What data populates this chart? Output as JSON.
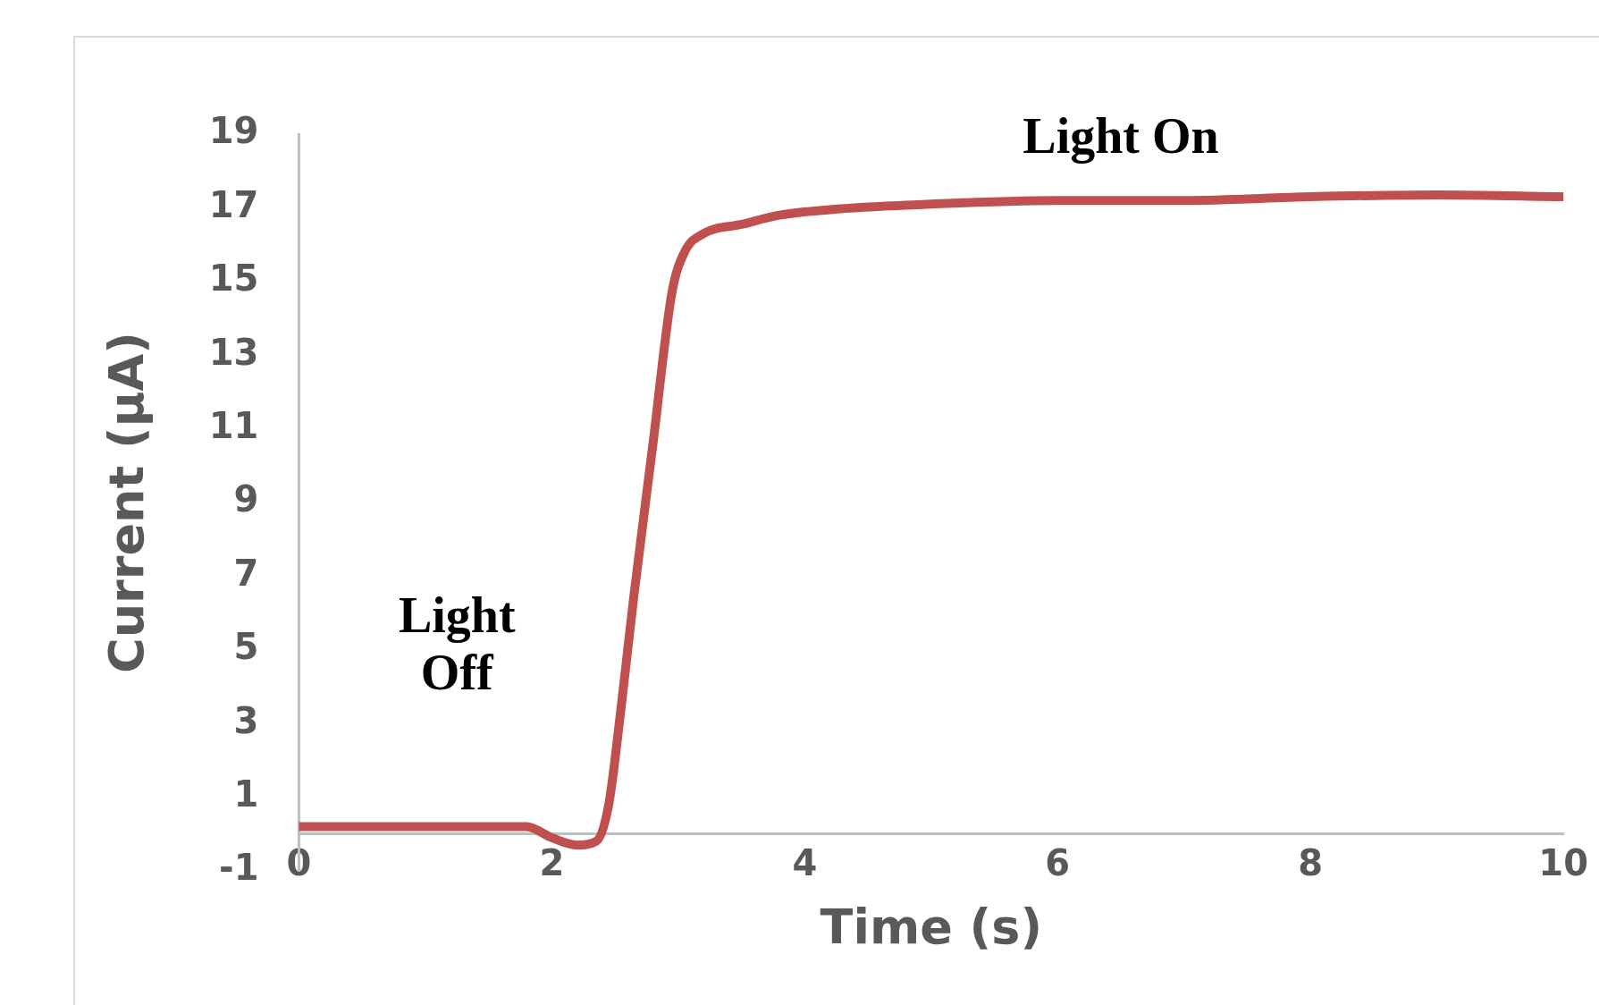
{
  "chart_data": {
    "type": "line",
    "xlabel": "Time (s)",
    "ylabel": "Current (μA)",
    "x": [
      0,
      0.5,
      1,
      1.5,
      1.8,
      2,
      2.2,
      2.35,
      2.45,
      2.55,
      2.65,
      2.8,
      2.95,
      3.05,
      3.2,
      3.5,
      3.8,
      4.2,
      5,
      6,
      7,
      8,
      9,
      10
    ],
    "series": [
      {
        "color": "#c0504d",
        "values": [
          0.2,
          0.2,
          0.2,
          0.2,
          0.2,
          -0.1,
          -0.3,
          -0.2,
          0.8,
          3.5,
          6.5,
          10.6,
          14.7,
          15.8,
          16.3,
          16.55,
          16.8,
          16.95,
          17.1,
          17.2,
          17.2,
          17.3,
          17.35,
          17.3
        ]
      }
    ],
    "xlim": [
      0,
      10
    ],
    "xticks": [
      0,
      2,
      4,
      6,
      8,
      10
    ],
    "ylim": [
      -1,
      19
    ],
    "yticks": [
      -1,
      1,
      3,
      5,
      7,
      9,
      11,
      13,
      15,
      17,
      19
    ],
    "annotations": [
      "Light Off",
      "Light On"
    ],
    "grid": false,
    "legend": false,
    "marker": "none",
    "line_style": "solid"
  }
}
